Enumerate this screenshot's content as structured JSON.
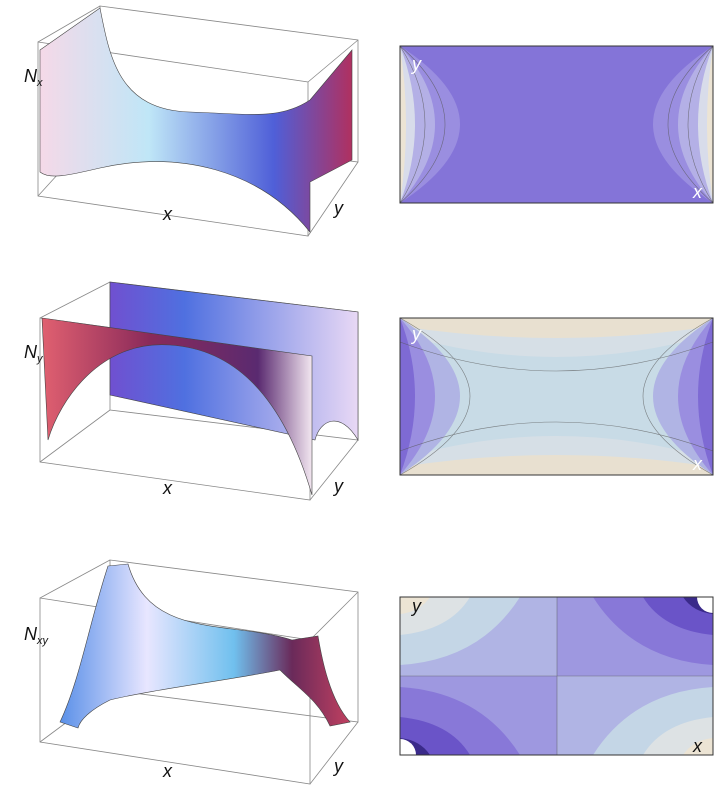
{
  "panels": [
    {
      "symbol": "N",
      "index": "x",
      "x_label": "x",
      "y_label": "y",
      "contour_y": "y",
      "contour_x": "x"
    },
    {
      "symbol": "N",
      "index": "y",
      "x_label": "x",
      "y_label": "y",
      "contour_y": "y",
      "contour_x": "x"
    },
    {
      "symbol": "N",
      "index": "xy",
      "x_label": "x",
      "y_label": "y",
      "contour_y": "y",
      "contour_x": "x"
    }
  ]
}
